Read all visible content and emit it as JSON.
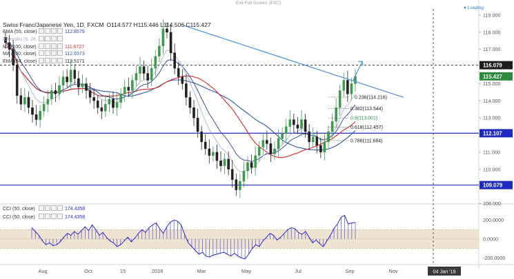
{
  "toolbar": {
    "exit_fullscreen_label": "Exit Full Screen (ESC)",
    "loading_label": "● Loading"
  },
  "header": {
    "symbol_line": "Swiss Franc/Japanese Yen, 1D, FXCM",
    "ohlc": "O114.577 H115.446 L114.506 C115.427"
  },
  "indicators": [
    {
      "name": "EMA (55, close)",
      "value": "112.8579",
      "color": "#2a3f94"
    },
    {
      "name": "Ichimoku (9, 26, 52)",
      "value": "",
      "color": "#9aa9c2"
    },
    {
      "name": "MA (100, close)",
      "value": "111.6727",
      "color": "#d9282a"
    },
    {
      "name": "MA (200, close)",
      "value": "112.6573",
      "color": "#2d5aa0"
    },
    {
      "name": "EMA (34, close)",
      "value": "113.5171",
      "color": "#232323"
    }
  ],
  "cci_legend": [
    {
      "name": "CCI (50, close)",
      "value": "174.4358"
    },
    {
      "name": "CCI (50, close)",
      "value": "174.4358"
    }
  ],
  "colors": {
    "up_candle": "#3f9a4e",
    "down_candle": "#222222",
    "horizontal_line": "#1f2bbd",
    "trendline": "#4a90d9",
    "fib_label": "#1a1a1a",
    "fib_highlight": "#2e8b57",
    "cci_line": "#2b2bcc",
    "cci_band": "#efe4d2",
    "price_badge_current": "#2f8a3e",
    "price_badge_dark": "#1e1e1e",
    "price_badge_blue": "#1f2bbd"
  },
  "chart_data": {
    "type": "candlestick",
    "price_axis": {
      "ylim": [
        108.0,
        119.5
      ],
      "ticks": [
        "119.000",
        "118.000",
        "117.000",
        "116.000",
        "115.000",
        "114.000",
        "113.000",
        "112.000",
        "111.000",
        "110.000",
        "109.000",
        "108.000"
      ]
    },
    "time_axis": {
      "tick_labels": [
        "Aug",
        "Oct",
        "15",
        "2018",
        "Mar",
        "May",
        "Jul",
        "Sep",
        "Nov"
      ],
      "range_label": "04 Jan '19"
    },
    "price_badges": [
      {
        "label": "116.079",
        "value": 116.079,
        "style": "dark"
      },
      {
        "label": "115.427",
        "value": 115.427,
        "style": "current"
      },
      {
        "label": "112.107",
        "value": 112.107,
        "style": "blue"
      },
      {
        "label": "109.079",
        "value": 109.079,
        "style": "blue"
      }
    ],
    "horizontal_lines": [
      112.107,
      109.079
    ],
    "dashed_level": 116.079,
    "fibonacci": [
      {
        "label": "0.236(114.216)",
        "value": 114.216
      },
      {
        "label": "0.382(113.544)",
        "value": 113.544
      },
      {
        "label": "0.5(113.001)",
        "value": 113.001
      },
      {
        "label": "0.618(112.457)",
        "value": 112.457
      },
      {
        "label": "0.786(111.684)",
        "value": 111.684
      }
    ],
    "trendline": {
      "start": [
        0.0,
        118.4
      ],
      "end": [
        1.0,
        114.2
      ]
    },
    "forecast_arrow": {
      "from": 115.2,
      "to": 116.3
    },
    "series_close": [
      117.4,
      117.0,
      116.1,
      114.3,
      113.8,
      114.2,
      113.6,
      113.2,
      112.9,
      113.4,
      113.8,
      114.1,
      114.6,
      114.4,
      114.9,
      115.4,
      115.1,
      115.8,
      115.3,
      114.8,
      115.0,
      114.6,
      114.2,
      114.0,
      113.6,
      113.4,
      113.8,
      114.1,
      113.6,
      113.9,
      114.4,
      114.8,
      114.6,
      115.2,
      115.6,
      116.0,
      115.6,
      115.2,
      115.9,
      116.6,
      117.2,
      118.2,
      118.0,
      116.8,
      115.9,
      115.4,
      115.0,
      114.2,
      113.6,
      113.0,
      112.2,
      111.6,
      111.2,
      110.8,
      111.0,
      110.5,
      110.2,
      110.6,
      110.0,
      109.4,
      108.8,
      109.3,
      109.9,
      110.4,
      110.1,
      110.8,
      111.3,
      111.7,
      111.5,
      110.9,
      111.2,
      111.8,
      112.1,
      112.5,
      112.9,
      112.6,
      112.4,
      112.9,
      112.2,
      111.6,
      111.9,
      111.4,
      111.0,
      111.6,
      112.2,
      112.8,
      113.6,
      114.6,
      115.2,
      114.4,
      115.0,
      115.43
    ],
    "cci_values": [
      120,
      80,
      40,
      -20,
      -60,
      -40,
      -70,
      -60,
      -30,
      20,
      60,
      40,
      80,
      50,
      90,
      130,
      90,
      150,
      100,
      40,
      70,
      20,
      -20,
      -40,
      -80,
      -60,
      -20,
      20,
      -30,
      10,
      60,
      100,
      70,
      120,
      150,
      170,
      110,
      60,
      130,
      180,
      200,
      190,
      150,
      50,
      -40,
      -80,
      -120,
      -160,
      -140,
      -180,
      -190,
      -170,
      -160,
      -150,
      -140,
      -160,
      -180,
      -150,
      -180,
      -200,
      -210,
      -160,
      -100,
      -60,
      -80,
      -20,
      20,
      60,
      40,
      -10,
      20,
      60,
      100,
      120,
      110,
      70,
      50,
      80,
      20,
      -40,
      -10,
      -50,
      -80,
      -20,
      40,
      110,
      160,
      230,
      250,
      160,
      170,
      174.4358
    ],
    "cci_axis": {
      "ylim": [
        -250,
        300
      ],
      "ticks": [
        "200.0000",
        "0.0000",
        "-200.0000"
      ]
    }
  }
}
